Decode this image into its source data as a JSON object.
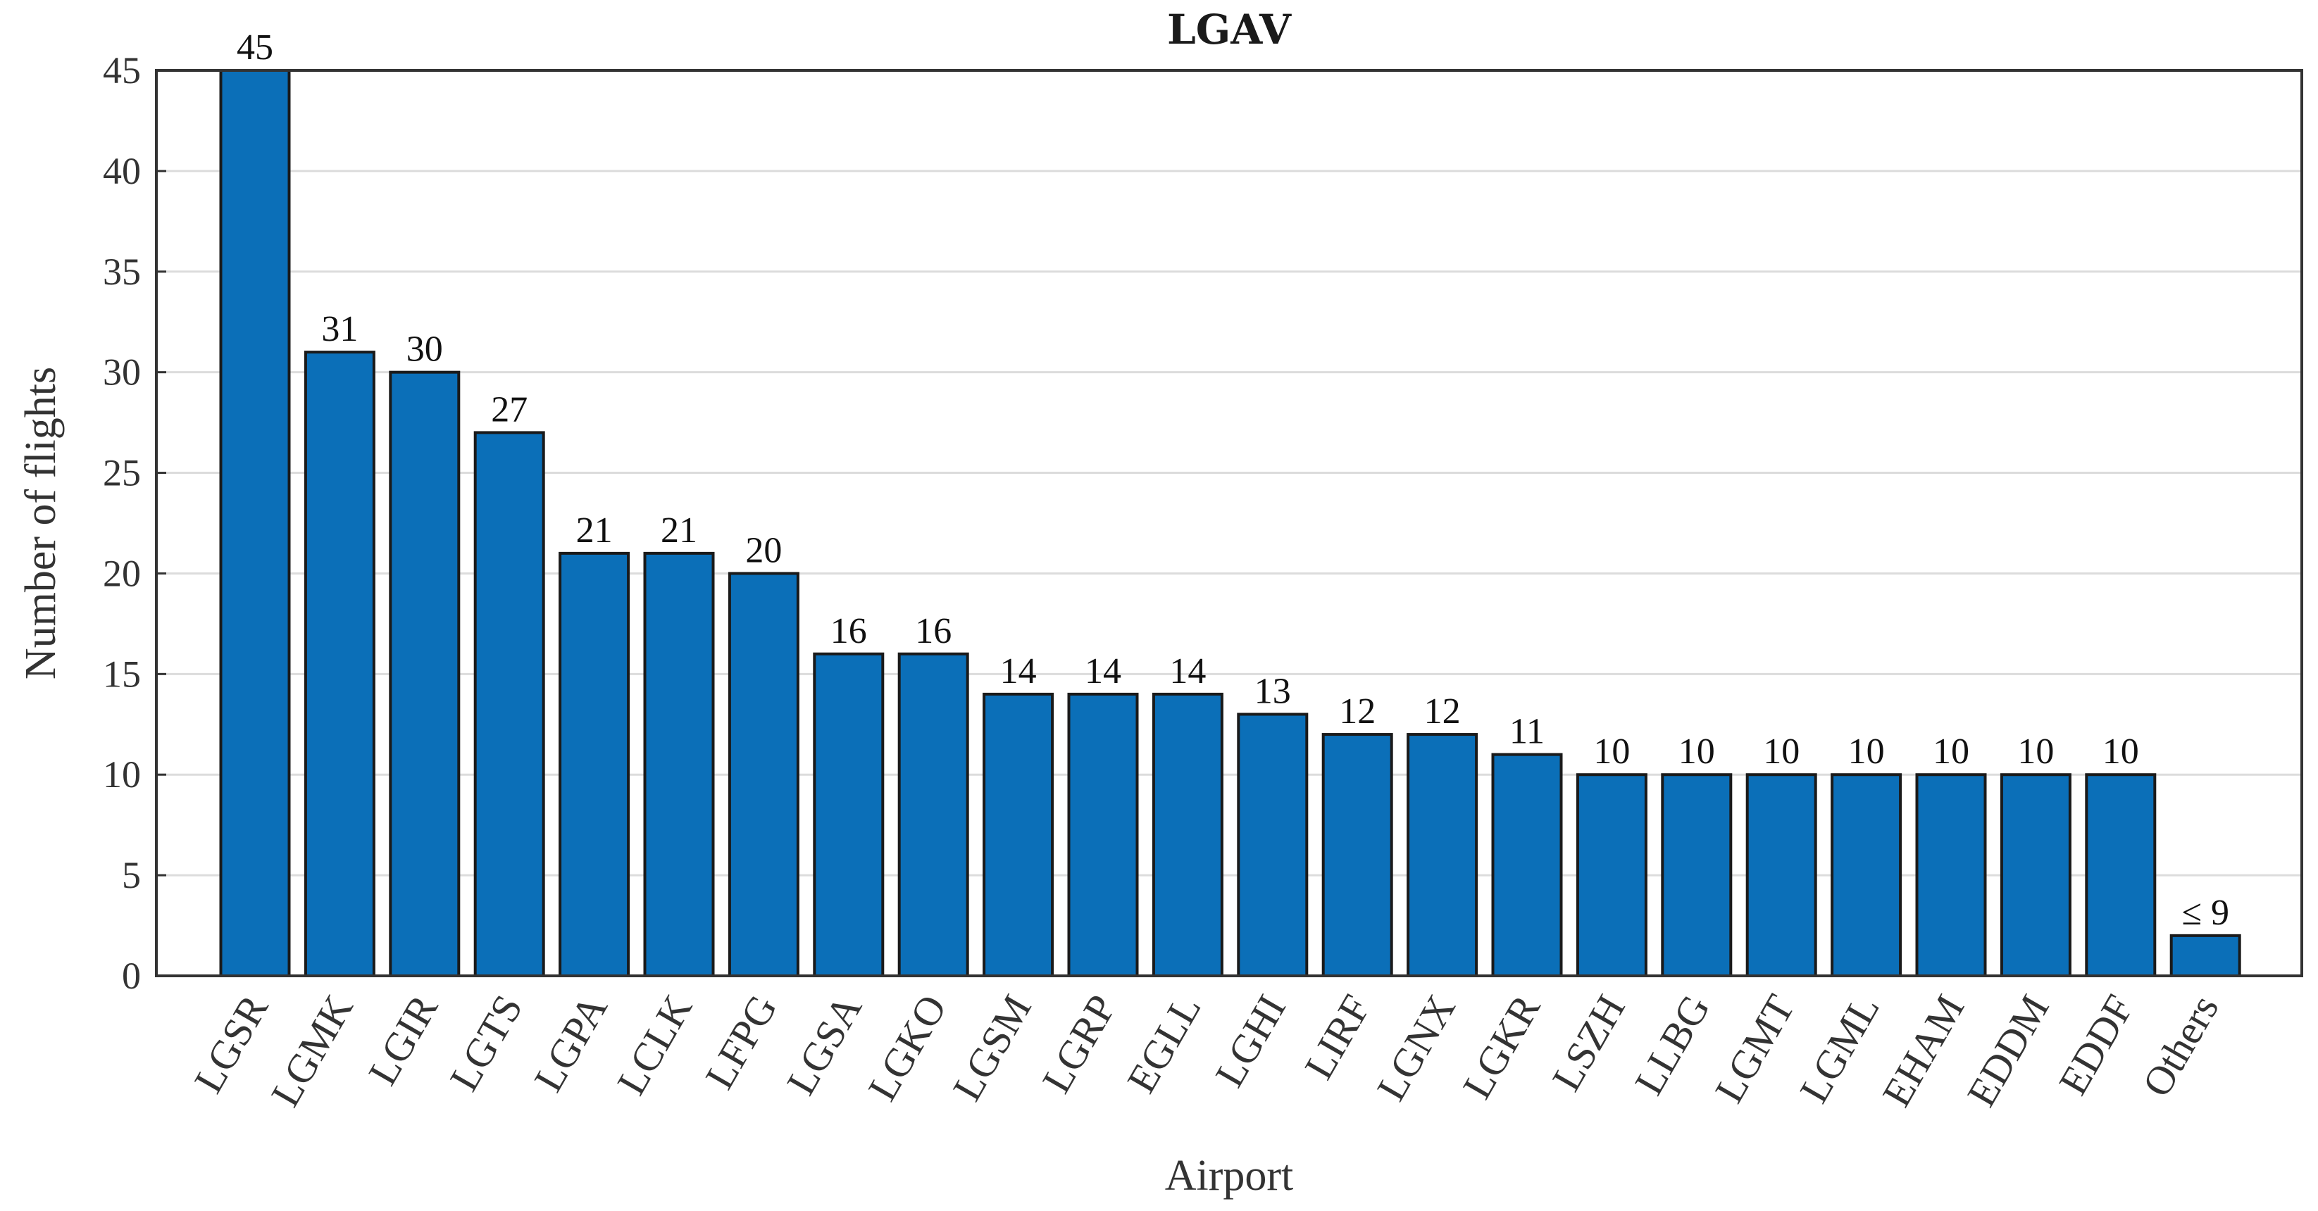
{
  "chart_data": {
    "type": "bar",
    "title": "LGAV",
    "xlabel": "Airport",
    "ylabel": "Number of flights",
    "ylim": [
      0,
      45
    ],
    "yticks": [
      0,
      5,
      10,
      15,
      20,
      25,
      30,
      35,
      40,
      45
    ],
    "grid": true,
    "categories": [
      "LGSR",
      "LGMK",
      "LGIR",
      "LGTS",
      "LGPA",
      "LCLK",
      "LFPG",
      "LGSA",
      "LGKO",
      "LGSM",
      "LGRP",
      "EGLL",
      "LGHI",
      "LIRF",
      "LGNX",
      "LGKR",
      "LSZH",
      "LLBG",
      "LGMT",
      "LGML",
      "EHAM",
      "EDDM",
      "EDDF",
      "Others"
    ],
    "values": [
      45,
      31,
      30,
      27,
      21,
      21,
      20,
      16,
      16,
      14,
      14,
      14,
      13,
      12,
      12,
      11,
      10,
      10,
      10,
      10,
      10,
      10,
      10,
      2
    ],
    "data_labels": [
      "45",
      "31",
      "30",
      "27",
      "21",
      "21",
      "20",
      "16",
      "16",
      "14",
      "14",
      "14",
      "13",
      "12",
      "12",
      "11",
      "10",
      "10",
      "10",
      "10",
      "10",
      "10",
      "10",
      "≤ 9"
    ],
    "bar_color": "#0b6fb8"
  }
}
